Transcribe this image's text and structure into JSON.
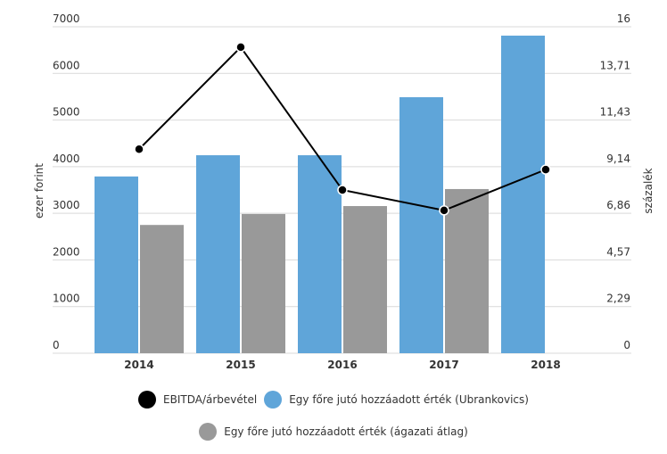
{
  "chart_data": {
    "type": "bar",
    "categories": [
      "2014",
      "2015",
      "2016",
      "2017",
      "2018"
    ],
    "series": [
      {
        "name": "Egy főre jutó hozzáadott érték (Ubrankovics)",
        "type": "bar",
        "axis": "left",
        "color": "#5fa5d9",
        "values": [
          3790,
          4245,
          4245,
          5490,
          6810
        ]
      },
      {
        "name": "Egy főre jutó hozzáadott érték (ágazati átlag)",
        "type": "bar",
        "axis": "left",
        "color": "#999999",
        "values": [
          2750,
          2985,
          3155,
          3520,
          null
        ]
      },
      {
        "name": "EBITDA/árbevétel",
        "type": "line",
        "axis": "right",
        "color": "#000000",
        "values": [
          10.0,
          15.0,
          8.0,
          7.0,
          9.0
        ]
      }
    ],
    "left_axis": {
      "label": "ezer forint",
      "ylim": [
        0,
        7000
      ],
      "ticks": [
        "0",
        "1000",
        "2000",
        "3000",
        "4000",
        "5000",
        "6000",
        "7000"
      ]
    },
    "right_axis": {
      "label": "százalék",
      "ylim": [
        0,
        16
      ],
      "ticks": [
        "0",
        "2,29",
        "4,57",
        "6,86",
        "9,14",
        "11,43",
        "13,71",
        "16"
      ]
    },
    "grid": true,
    "legend_position": "bottom",
    "legend": [
      {
        "label": "EBITDA/árbevétel",
        "color": "#000000"
      },
      {
        "label": "Egy főre jutó hozzáadott érték (Ubrankovics)",
        "color": "#5fa5d9"
      },
      {
        "label": "Egy főre jutó hozzáadott érték (ágazati átlag)",
        "color": "#999999"
      }
    ]
  }
}
